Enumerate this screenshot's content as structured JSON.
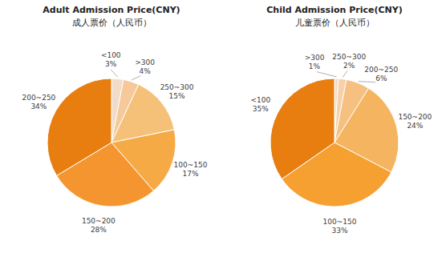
{
  "chart_data": [
    {
      "type": "pie",
      "title": "Adult Admission Price(CNY)",
      "subtitle": "成人票价（人民币）",
      "categories": [
        "<100",
        ">300",
        "250~300",
        "100~150",
        "150~200",
        "200~250"
      ],
      "values": [
        3,
        4,
        15,
        17,
        28,
        34
      ],
      "value_labels": [
        "3%",
        "4%",
        "15%",
        "17%",
        "28%",
        "34%"
      ],
      "colors": [
        "#f2dcc8",
        "#f5c99a",
        "#f5c178",
        "#f5aa46",
        "#f59530",
        "#e87e10"
      ]
    },
    {
      "type": "pie",
      "title": "Child Admission Price(CNY)",
      "subtitle": "儿童票价（人民币）",
      "categories": [
        ">300",
        "250~300",
        "200~250",
        "150~200",
        "100~150",
        "<100"
      ],
      "values": [
        1,
        2,
        6,
        24,
        33,
        35
      ],
      "value_labels": [
        "1%",
        "2%",
        "6%",
        "24%",
        "33%",
        "35%"
      ],
      "colors": [
        "#f2dcc8",
        "#f5d0a8",
        "#f5c080",
        "#f5b560",
        "#f5a030",
        "#e87e10"
      ]
    }
  ]
}
